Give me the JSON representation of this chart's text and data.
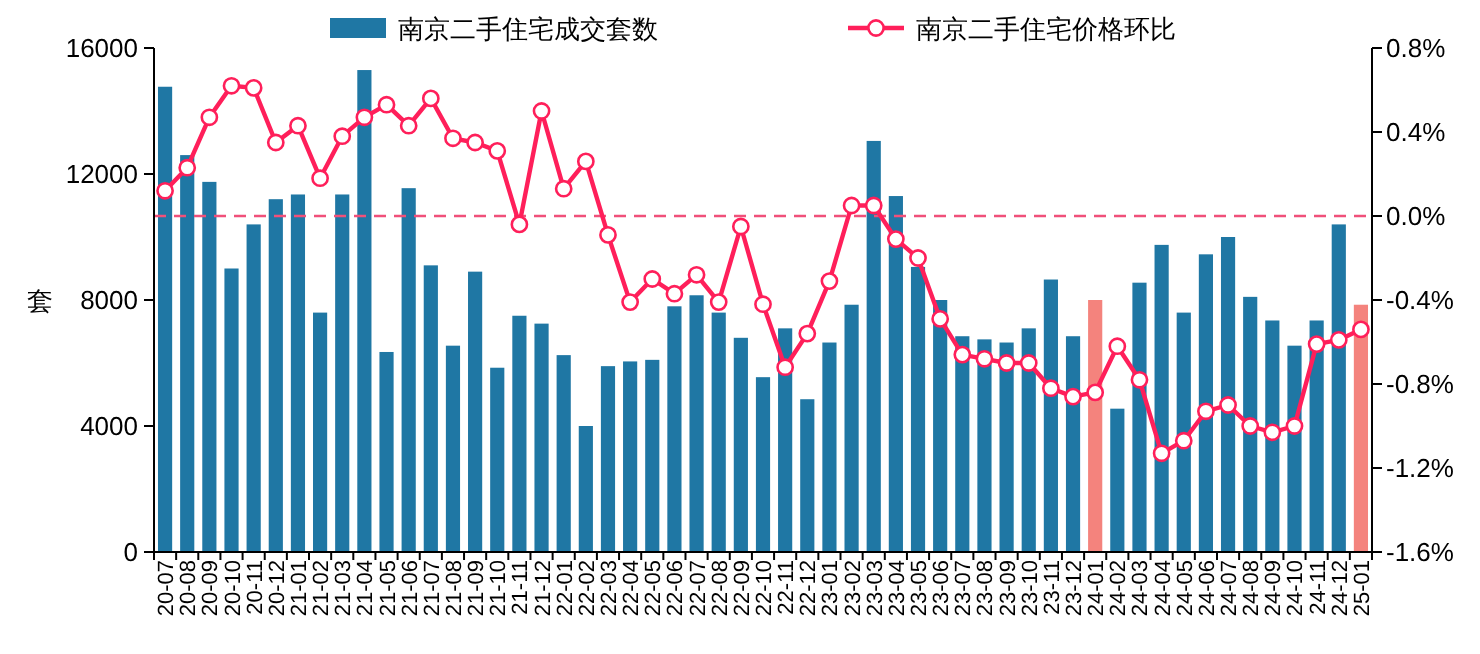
{
  "chart_data": {
    "type": "bar",
    "ylabel": "套",
    "legend": "top",
    "categories": [
      "20-07",
      "20-08",
      "20-09",
      "20-10",
      "20-11",
      "20-12",
      "21-01",
      "21-02",
      "21-03",
      "21-04",
      "21-05",
      "21-06",
      "21-07",
      "21-08",
      "21-09",
      "21-10",
      "21-11",
      "21-12",
      "22-01",
      "22-02",
      "22-03",
      "22-04",
      "22-05",
      "22-06",
      "22-07",
      "22-08",
      "22-09",
      "22-10",
      "22-11",
      "22-12",
      "23-01",
      "23-02",
      "23-03",
      "23-04",
      "23-05",
      "23-06",
      "23-07",
      "23-08",
      "23-09",
      "23-10",
      "23-11",
      "23-12",
      "24-01",
      "24-02",
      "24-03",
      "24-04",
      "24-05",
      "24-06",
      "24-07",
      "24-08",
      "24-09",
      "24-10",
      "24-11",
      "24-12",
      "25-01"
    ],
    "ylim": [
      0,
      16000
    ],
    "yticks": [
      0,
      4000,
      8000,
      12000,
      16000
    ],
    "y2lim": [
      -1.6,
      0.8
    ],
    "y2ticks": [
      {
        "value": -1.6,
        "label": "-1.6%"
      },
      {
        "value": -1.2,
        "label": "-1.2%"
      },
      {
        "value": -0.8,
        "label": "-0.8%"
      },
      {
        "value": -0.4,
        "label": "-0.4%"
      },
      {
        "value": 0.0,
        "label": "0.0%"
      },
      {
        "value": 0.4,
        "label": "0.4%"
      },
      {
        "value": 0.8,
        "label": "0.8%"
      }
    ],
    "ref_lines": [
      {
        "axis": "y2",
        "value": 0,
        "color": "#f0507a",
        "line_style": "dashed"
      }
    ],
    "series": [
      {
        "name": "南京二手住宅成交套数",
        "color": "#1f77a4",
        "colors": [
          "#1f77a4",
          "#1f77a4",
          "#1f77a4",
          "#1f77a4",
          "#1f77a4",
          "#1f77a4",
          "#1f77a4",
          "#1f77a4",
          "#1f77a4",
          "#1f77a4",
          "#1f77a4",
          "#1f77a4",
          "#1f77a4",
          "#1f77a4",
          "#1f77a4",
          "#1f77a4",
          "#1f77a4",
          "#1f77a4",
          "#1f77a4",
          "#1f77a4",
          "#1f77a4",
          "#1f77a4",
          "#1f77a4",
          "#1f77a4",
          "#1f77a4",
          "#1f77a4",
          "#1f77a4",
          "#1f77a4",
          "#1f77a4",
          "#1f77a4",
          "#1f77a4",
          "#1f77a4",
          "#1f77a4",
          "#1f77a4",
          "#1f77a4",
          "#1f77a4",
          "#1f77a4",
          "#1f77a4",
          "#1f77a4",
          "#1f77a4",
          "#1f77a4",
          "#1f77a4",
          "#f4837d",
          "#1f77a4",
          "#1f77a4",
          "#1f77a4",
          "#1f77a4",
          "#1f77a4",
          "#1f77a4",
          "#1f77a4",
          "#1f77a4",
          "#1f77a4",
          "#1f77a4",
          "#1f77a4",
          "#f4837d"
        ],
        "values": [
          14770,
          12600,
          11750,
          9000,
          10400,
          11200,
          11350,
          7600,
          11350,
          15300,
          6350,
          11550,
          9100,
          6550,
          8900,
          5850,
          7500,
          7250,
          6250,
          4000,
          5900,
          6050,
          6100,
          7800,
          8150,
          7600,
          6800,
          5550,
          7100,
          4850,
          6650,
          7850,
          13050,
          11300,
          9050,
          8000,
          6850,
          6750,
          6650,
          7100,
          8650,
          6850,
          8000,
          4550,
          8550,
          9750,
          7600,
          9450,
          10000,
          8100,
          7350,
          6550,
          7350,
          10400,
          7850
        ]
      },
      {
        "name": "南京二手住宅价格环比",
        "type": "line",
        "axis": "y2",
        "color": "#ff1f5a",
        "marker": "circle",
        "line_style": "solid",
        "values": [
          0.12,
          0.23,
          0.47,
          0.62,
          0.61,
          0.35,
          0.43,
          0.18,
          0.38,
          0.47,
          0.53,
          0.43,
          0.56,
          0.37,
          0.35,
          0.31,
          -0.04,
          0.5,
          0.13,
          0.26,
          -0.09,
          -0.41,
          -0.3,
          -0.37,
          -0.28,
          -0.41,
          -0.05,
          -0.42,
          -0.72,
          -0.56,
          -0.31,
          0.05,
          0.05,
          -0.11,
          -0.2,
          -0.49,
          -0.66,
          -0.68,
          -0.7,
          -0.7,
          -0.82,
          -0.86,
          -0.84,
          -0.62,
          -0.78,
          -1.13,
          -1.07,
          -0.93,
          -0.9,
          -1.0,
          -1.03,
          -1.0,
          -0.61,
          -0.59,
          -0.54
        ]
      }
    ]
  }
}
